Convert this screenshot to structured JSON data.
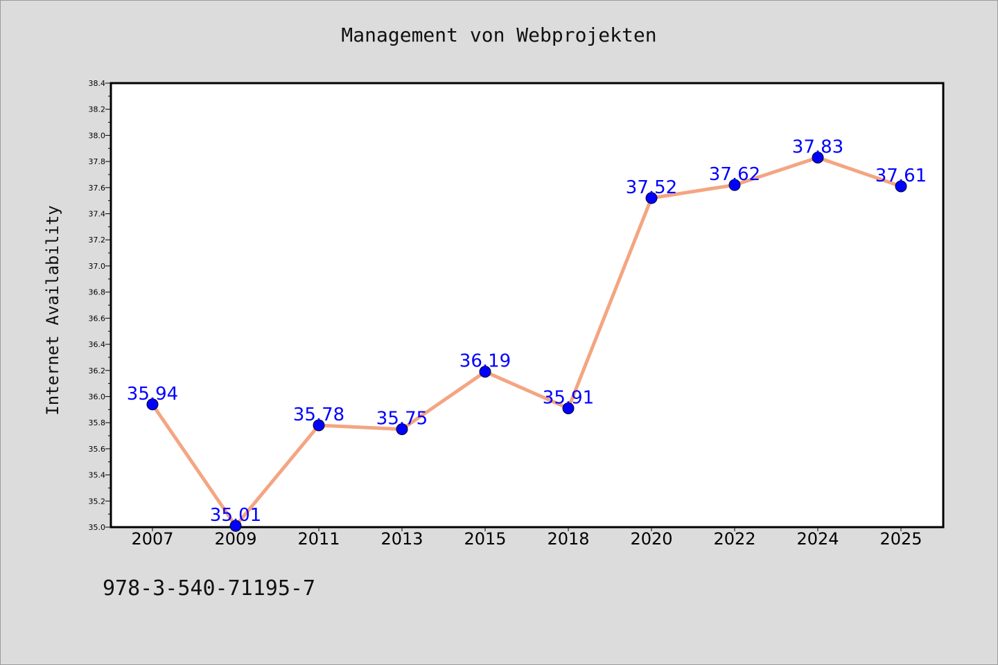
{
  "chart_data": {
    "type": "line",
    "title": "Management von Webprojekten",
    "xlabel": "",
    "ylabel": "Internet Availability",
    "categories": [
      "2007",
      "2009",
      "2011",
      "2013",
      "2015",
      "2018",
      "2020",
      "2022",
      "2024",
      "2025"
    ],
    "series": [
      {
        "values": [
          35.94,
          35.01,
          35.78,
          35.75,
          36.19,
          35.91,
          37.52,
          37.62,
          37.83,
          37.61
        ],
        "labels": [
          "35.94",
          "35.01",
          "35.78",
          "35.75",
          "36.19",
          "35.91",
          "37.52",
          "37.62",
          "37.83",
          "37.61"
        ],
        "line_color": "#f4a582",
        "marker_color": "#0000ff",
        "label_color": "#0000ff"
      }
    ],
    "ylim": [
      35.0,
      38.4
    ],
    "y_ticks": [
      "35.0",
      "35.2",
      "35.4",
      "35.6",
      "35.8",
      "36.0",
      "36.2",
      "36.4",
      "36.6",
      "36.8",
      "37.0",
      "37.2",
      "37.4",
      "37.6",
      "37.8",
      "38.0",
      "38.2",
      "38.4"
    ],
    "grid": false,
    "legend": "none"
  },
  "footer": {
    "isbn": "978-3-540-71195-7"
  }
}
